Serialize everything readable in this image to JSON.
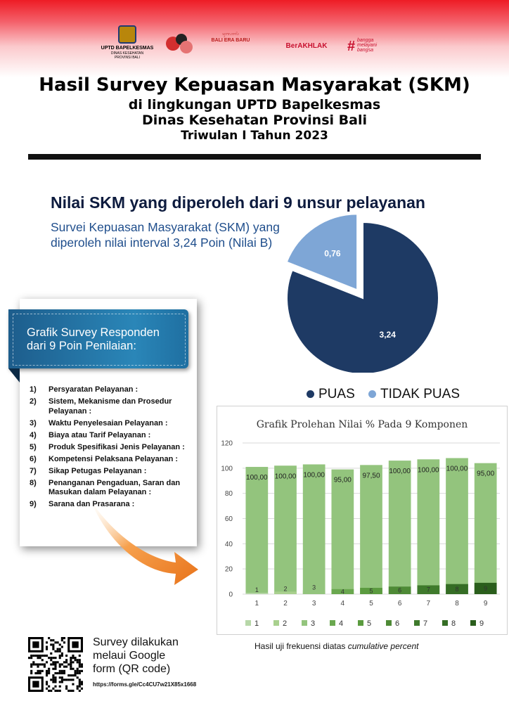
{
  "header": {
    "logos": {
      "bapelkesmas_line1": "UPTD BAPELKESMAS",
      "bapelkesmas_line2": "DINAS KESEHATAN",
      "bapelkesmas_line3": "PROVINSI BALI",
      "bali_script": "ᬲᬸᬩᬳᬵᬮᬶ",
      "bali_era_baru": "BALI ERA BARU",
      "berakhlak": "BerAKHLAK",
      "bangga_melayani": "bangga melayani bangsa"
    },
    "title": "Hasil Survey Kepuasan Masyarakat (SKM)",
    "subtitle_1": "di lingkungan UPTD Bapelkesmas",
    "subtitle_2": "Dinas Kesehatan Provinsi Bali",
    "period": "Triwulan I Tahun 2023"
  },
  "summary": {
    "heading": "Nilai SKM yang diperoleh dari 9 unsur pelayanan",
    "description": "Survei Kepuasan Masyarakat (SKM) yang diperoleh nilai interval 3,24 Poin (Nilai B)"
  },
  "pie": {
    "slices": [
      {
        "label": "PUAS",
        "value": 3.24,
        "display": "3,24",
        "color": "#1e3a64"
      },
      {
        "label": "TIDAK PUAS",
        "value": 0.76,
        "display": "0,76",
        "color": "#7ea6d6"
      }
    ],
    "legend_puas": "PUAS",
    "legend_tidak_puas": "TIDAK PUAS"
  },
  "respondents": {
    "ribbon_line1": "Grafik Survey Responden",
    "ribbon_line2": "dari 9 Poin Penilaian:",
    "items": [
      {
        "num": "1)",
        "label": "Persyaratan Pelayanan :"
      },
      {
        "num": "2)",
        "label": "Sistem, Mekanisme dan Prosedur Pelayanan :"
      },
      {
        "num": "3)",
        "label": "Waktu Penyelesaian Pelayanan :"
      },
      {
        "num": "4)",
        "label": "Biaya atau Tarif Pelayanan :"
      },
      {
        "num": "5)",
        "label": "Produk Spesifikasi Jenis Pelayanan :"
      },
      {
        "num": "6)",
        "label": "Kompetensi Pelaksana Pelayanan :"
      },
      {
        "num": "7)",
        "label": "Sikap Petugas Pelayanan :"
      },
      {
        "num": "8)",
        "label": "Penanganan Pengaduan, Saran dan Masukan dalam Pelayanan :"
      },
      {
        "num": "9)",
        "label": "Sarana dan Prasarana :"
      }
    ]
  },
  "chart_data": {
    "type": "bar",
    "title": "Grafik Prolehan Nilai % Pada 9 Komponen",
    "categories": [
      "1",
      "2",
      "3",
      "4",
      "5",
      "6",
      "7",
      "8",
      "9"
    ],
    "series": [
      {
        "name": "1",
        "values": [
          100,
          100,
          100,
          95,
          97.5,
          100,
          100,
          100,
          95
        ]
      }
    ],
    "value_labels": [
      "100,00",
      "100,00",
      "100,00",
      "95,00",
      "97,50",
      "100,00",
      "100,00",
      "100,00",
      "95,00"
    ],
    "stack_bottom": [
      1,
      2,
      3,
      4,
      5,
      6,
      7,
      8,
      9
    ],
    "bottom_segment_label": [
      "1",
      "2",
      "3",
      "4",
      "5",
      "6",
      "7",
      "8",
      "9"
    ],
    "ylim": [
      0,
      120
    ],
    "yticks": [
      0,
      20,
      40,
      60,
      80,
      100,
      120
    ],
    "legend_labels": [
      "1",
      "2",
      "3",
      "4",
      "5",
      "6",
      "7",
      "8",
      "9"
    ],
    "legend_colors": [
      "#b7d7a8",
      "#a9d08e",
      "#93c47d",
      "#6aa84f",
      "#5b9b3f",
      "#4e8a36",
      "#3f7a2c",
      "#356d25",
      "#2a5e1c"
    ],
    "bar_color": "#93c47d",
    "grid": true,
    "legend_position": "bottom"
  },
  "footer": {
    "qr_line1": "Survey dilakukan",
    "qr_line2": "melaui Google",
    "qr_line3": "form (QR code)",
    "link": "https://forms.gle/Cc4CU7w21X85x1668",
    "note_prefix": "Hasil uji frekuensi diatas ",
    "note_emph": "cumulative percent"
  }
}
